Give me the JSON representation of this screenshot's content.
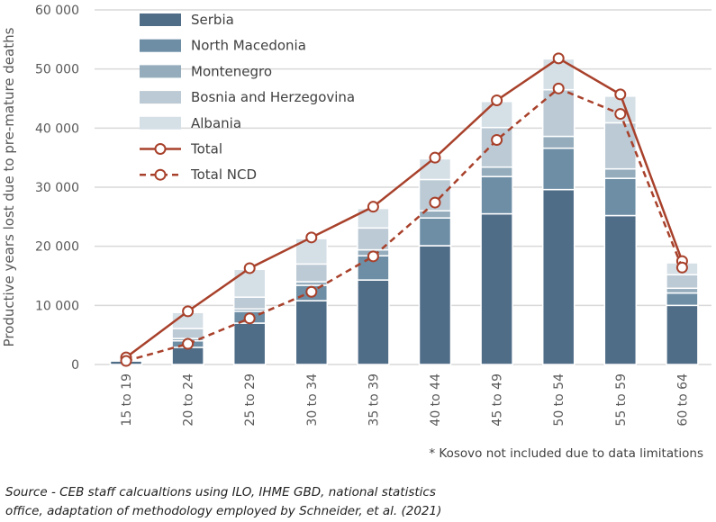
{
  "chart_data": {
    "type": "bar",
    "stacked": true,
    "title": "",
    "xlabel": "",
    "ylabel": "Productive years lost due to pre-mature deaths",
    "ylim": [
      0,
      60000
    ],
    "yticks": [
      0,
      10000,
      20000,
      30000,
      40000,
      50000,
      60000
    ],
    "ytick_labels": [
      "0",
      "10 000",
      "20 000",
      "30 000",
      "40 000",
      "50 000",
      "60 000"
    ],
    "grid": true,
    "legend_placement": "top-left",
    "categories": [
      "15 to 19",
      "20 to 24",
      "25 to 29",
      "30 to 34",
      "35 to 39",
      "40 to 44",
      "45 to 49",
      "50 to 54",
      "55 to 59",
      "60 to 64"
    ],
    "series": [
      {
        "name": "Serbia",
        "type": "bar",
        "color": "#506d88",
        "values": [
          600,
          2900,
          7000,
          10800,
          14300,
          20100,
          25500,
          29600,
          25200,
          10000
        ]
      },
      {
        "name": "North Macedonia",
        "type": "bar",
        "color": "#6d8ea5",
        "values": [
          150,
          1100,
          2000,
          2600,
          4100,
          4700,
          6300,
          7000,
          6300,
          2100
        ]
      },
      {
        "name": "Montenegro",
        "type": "bar",
        "color": "#94acbc",
        "values": [
          50,
          400,
          400,
          600,
          1000,
          1200,
          1600,
          2000,
          1600,
          800
        ]
      },
      {
        "name": "Bosnia and Herzegovina",
        "type": "bar",
        "color": "#bccad5",
        "values": [
          100,
          1700,
          2000,
          3000,
          3700,
          5300,
          6700,
          7900,
          7800,
          2300
        ]
      },
      {
        "name": "Albania",
        "type": "bar",
        "color": "#d5dfe6",
        "values": [
          100,
          2700,
          4700,
          4300,
          3300,
          3500,
          4400,
          5200,
          4500,
          2000
        ]
      },
      {
        "name": "Total",
        "type": "line",
        "style": "solid",
        "color": "#a8412b",
        "values": [
          1200,
          9000,
          16300,
          21500,
          26700,
          35000,
          44700,
          51800,
          45700,
          17500
        ]
      },
      {
        "name": "Total NCD",
        "type": "line",
        "style": "dashed",
        "color": "#a8412b",
        "values": [
          600,
          3500,
          7800,
          12300,
          18300,
          27400,
          38000,
          46700,
          42400,
          16400
        ]
      }
    ],
    "annotations": [
      "* Kosovo not included due to data limitations"
    ]
  },
  "source": {
    "line1": "Source - CEB staff calcualtions using ILO, IHME GBD, national statistics",
    "line2": "office, adaptation of methodology employed by Schneider, et al. (2021)"
  }
}
